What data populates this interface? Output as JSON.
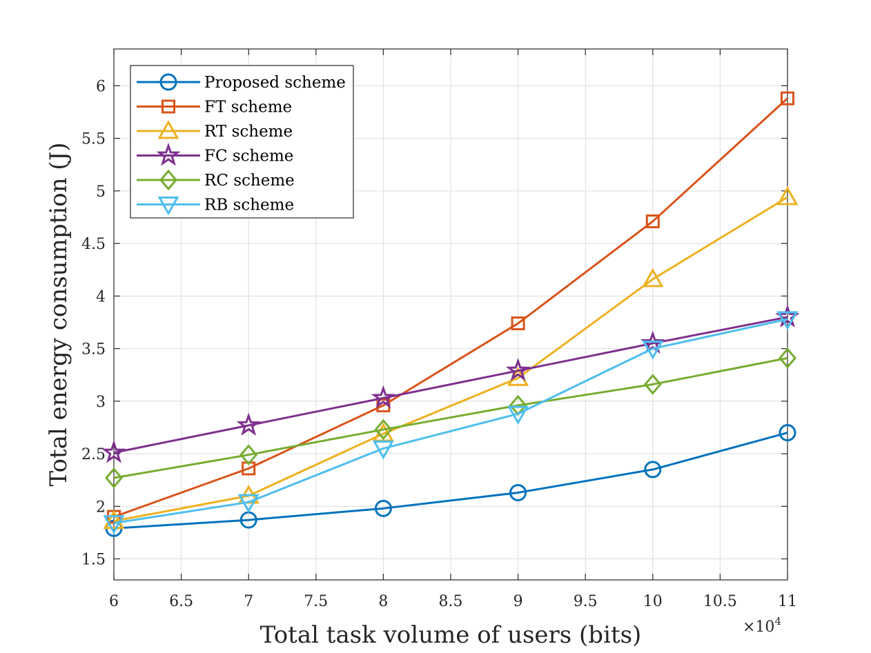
{
  "chart_data": {
    "type": "line",
    "title": "",
    "xlabel": "Total task volume of users (bits)",
    "ylabel": "Total energy consumption (J)",
    "x_exponent_label": "×10",
    "x_exponent_power": "4",
    "xlim": [
      6,
      11
    ],
    "ylim": [
      1.3,
      6.35
    ],
    "grid": true,
    "legend_position": "top-left",
    "x_ticks": [
      6,
      6.5,
      7,
      7.5,
      8,
      8.5,
      9,
      9.5,
      10,
      10.5,
      11
    ],
    "x_tick_labels": [
      "6",
      "6.5",
      "7",
      "7.5",
      "8",
      "8.5",
      "9",
      "9.5",
      "10",
      "10.5",
      "11"
    ],
    "y_ticks": [
      1.5,
      2,
      2.5,
      3,
      3.5,
      4,
      4.5,
      5,
      5.5,
      6
    ],
    "y_tick_labels": [
      "1.5",
      "2",
      "2.5",
      "3",
      "3.5",
      "4",
      "4.5",
      "5",
      "5.5",
      "6"
    ],
    "x": [
      6,
      7,
      8,
      9,
      10,
      11
    ],
    "series": [
      {
        "name": "Proposed scheme",
        "color": "#0072BD",
        "marker": "circle",
        "values": [
          1.79,
          1.87,
          1.98,
          2.13,
          2.35,
          2.7
        ]
      },
      {
        "name": "FT scheme",
        "color": "#D95319",
        "marker": "square",
        "values": [
          1.9,
          2.36,
          2.96,
          3.74,
          4.71,
          5.88
        ]
      },
      {
        "name": "RT scheme",
        "color": "#EDB120",
        "marker": "triangle-up",
        "values": [
          1.86,
          2.1,
          2.69,
          3.22,
          4.16,
          4.94
        ]
      },
      {
        "name": "FC scheme",
        "color": "#7E2F8E",
        "marker": "star",
        "values": [
          2.51,
          2.77,
          3.03,
          3.29,
          3.55,
          3.8
        ]
      },
      {
        "name": "RC scheme",
        "color": "#77AC30",
        "marker": "diamond",
        "values": [
          2.27,
          2.49,
          2.73,
          2.96,
          3.16,
          3.41
        ]
      },
      {
        "name": "RB scheme",
        "color": "#4DBEEE",
        "marker": "triangle-down",
        "values": [
          1.84,
          2.04,
          2.55,
          2.88,
          3.5,
          3.78
        ]
      }
    ]
  }
}
